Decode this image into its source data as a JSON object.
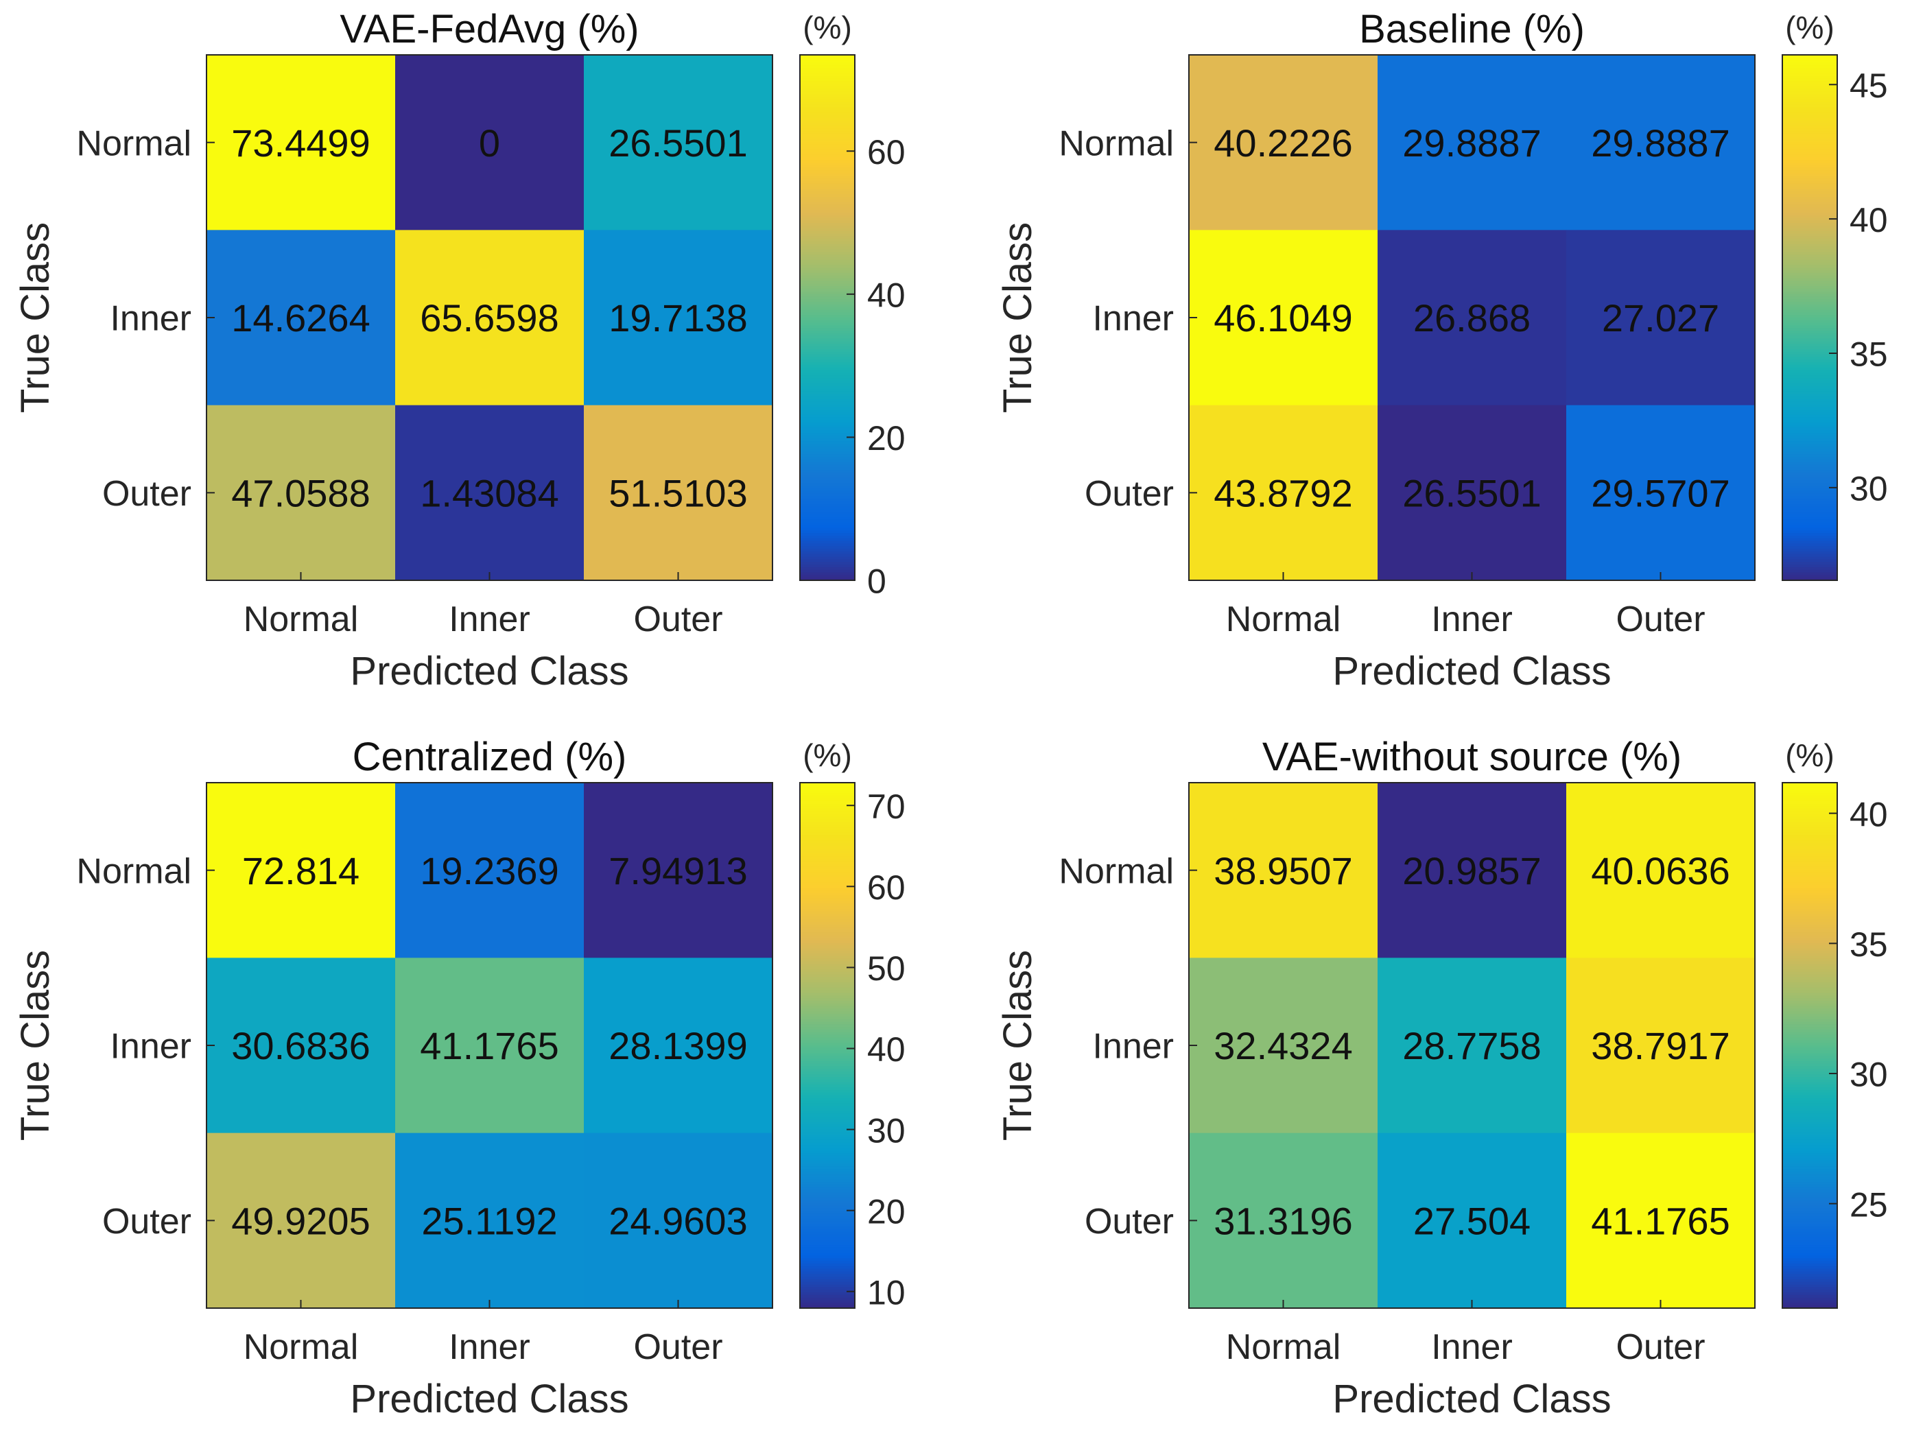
{
  "chart_data": [
    {
      "type": "heatmap",
      "title": "VAE-FedAvg (%)",
      "xlabel": "Predicted Class",
      "ylabel": "True Class",
      "x_categories": [
        "Normal",
        "Inner",
        "Outer"
      ],
      "y_categories": [
        "Normal",
        "Inner",
        "Outer"
      ],
      "values": [
        [
          73.4499,
          0,
          26.5501
        ],
        [
          14.6264,
          65.6598,
          19.7138
        ],
        [
          47.0588,
          1.43084,
          51.5103
        ]
      ],
      "value_labels": [
        [
          "73.4499",
          "0",
          "26.5501"
        ],
        [
          "14.6264",
          "65.6598",
          "19.7138"
        ],
        [
          "47.0588",
          "1.43084",
          "51.5103"
        ]
      ],
      "colorbar": {
        "label": "(%)",
        "range": [
          0,
          73.4499
        ],
        "ticks": [
          0,
          20,
          40,
          60
        ]
      }
    },
    {
      "type": "heatmap",
      "title": "Baseline (%)",
      "xlabel": "Predicted Class",
      "ylabel": "True Class",
      "x_categories": [
        "Normal",
        "Inner",
        "Outer"
      ],
      "y_categories": [
        "Normal",
        "Inner",
        "Outer"
      ],
      "values": [
        [
          40.2226,
          29.8887,
          29.8887
        ],
        [
          46.1049,
          26.868,
          27.027
        ],
        [
          43.8792,
          26.5501,
          29.5707
        ]
      ],
      "value_labels": [
        [
          "40.2226",
          "29.8887",
          "29.8887"
        ],
        [
          "46.1049",
          "26.868",
          "27.027"
        ],
        [
          "43.8792",
          "26.5501",
          "29.5707"
        ]
      ],
      "colorbar": {
        "label": "(%)",
        "range": [
          26.5501,
          46.1049
        ],
        "ticks": [
          30,
          35,
          40,
          45
        ]
      }
    },
    {
      "type": "heatmap",
      "title": "Centralized (%)",
      "xlabel": "Predicted Class",
      "ylabel": "True Class",
      "x_categories": [
        "Normal",
        "Inner",
        "Outer"
      ],
      "y_categories": [
        "Normal",
        "Inner",
        "Outer"
      ],
      "values": [
        [
          72.814,
          19.2369,
          7.94913
        ],
        [
          30.6836,
          41.1765,
          28.1399
        ],
        [
          49.9205,
          25.1192,
          24.9603
        ]
      ],
      "value_labels": [
        [
          "72.814",
          "19.2369",
          "7.94913"
        ],
        [
          "30.6836",
          "41.1765",
          "28.1399"
        ],
        [
          "49.9205",
          "25.1192",
          "24.9603"
        ]
      ],
      "colorbar": {
        "label": "(%)",
        "range": [
          7.94913,
          72.814
        ],
        "ticks": [
          10,
          20,
          30,
          40,
          50,
          60,
          70
        ]
      }
    },
    {
      "type": "heatmap",
      "title": "VAE-without source (%)",
      "xlabel": "Predicted Class",
      "ylabel": "True Class",
      "x_categories": [
        "Normal",
        "Inner",
        "Outer"
      ],
      "y_categories": [
        "Normal",
        "Inner",
        "Outer"
      ],
      "values": [
        [
          38.9507,
          20.9857,
          40.0636
        ],
        [
          32.4324,
          28.7758,
          38.7917
        ],
        [
          31.3196,
          27.504,
          41.1765
        ]
      ],
      "value_labels": [
        [
          "38.9507",
          "20.9857",
          "40.0636"
        ],
        [
          "32.4324",
          "28.7758",
          "38.7917"
        ],
        [
          "31.3196",
          "27.504",
          "41.1765"
        ]
      ],
      "colorbar": {
        "label": "(%)",
        "range": [
          20.9857,
          41.1765
        ],
        "ticks": [
          25,
          30,
          35,
          40
        ]
      }
    }
  ]
}
